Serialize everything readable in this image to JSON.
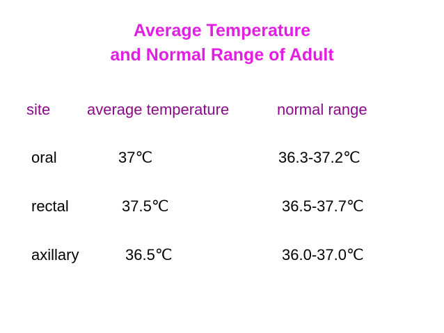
{
  "header": {
    "title": [
      "Average Temperature",
      "and Normal Range of Adult"
    ]
  },
  "table": {
    "columns": [
      "site",
      "average temperature",
      "normal range"
    ],
    "rows": [
      [
        "oral",
        "37℃",
        "36.3-37.2℃"
      ],
      [
        "rectal",
        "37.5℃",
        "36.5-37.7℃"
      ],
      [
        "axillary",
        "36.5℃",
        "36.0-37.0℃"
      ]
    ]
  }
}
